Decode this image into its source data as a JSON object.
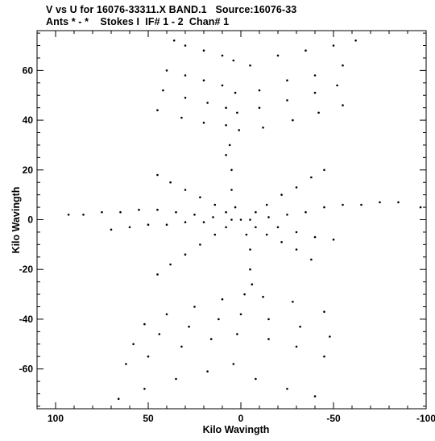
{
  "header": {
    "title_line1": "V vs U for 16076-33311.X BAND.1   Source:16076-33",
    "title_line2": "Ants * - *    Stokes I  IF# 1 - 2  Chan# 1"
  },
  "chart_data": {
    "type": "scatter",
    "title": "V vs U for 16076-33311.X BAND.1   Source:16076-33",
    "subtitle": "Ants * - *    Stokes I  IF# 1 - 2  Chan# 1",
    "xlabel": "Kilo Wavingth",
    "ylabel": "Kilo Wavingth",
    "xlim": [
      110,
      -100
    ],
    "ylim": [
      -76,
      76
    ],
    "x_reversed": true,
    "xticks": [
      100,
      50,
      0,
      -50,
      -100
    ],
    "yticks": [
      -60,
      -40,
      -20,
      0,
      20,
      40,
      60
    ],
    "grid": false,
    "marker": "black dots",
    "series": [
      {
        "values": [
          [
            36,
            72
          ],
          [
            30,
            70
          ],
          [
            20,
            68
          ],
          [
            10,
            66
          ],
          [
            4,
            64
          ],
          [
            -5,
            62
          ],
          [
            -20,
            66
          ],
          [
            -35,
            68
          ],
          [
            -50,
            70
          ],
          [
            -62,
            72
          ],
          [
            40,
            60
          ],
          [
            30,
            58
          ],
          [
            20,
            56
          ],
          [
            10,
            54
          ],
          [
            3,
            51
          ],
          [
            -10,
            52
          ],
          [
            -25,
            56
          ],
          [
            -40,
            58
          ],
          [
            -55,
            62
          ],
          [
            42,
            52
          ],
          [
            30,
            49
          ],
          [
            18,
            47
          ],
          [
            8,
            45
          ],
          [
            2,
            43
          ],
          [
            -10,
            45
          ],
          [
            -25,
            48
          ],
          [
            -40,
            51
          ],
          [
            -52,
            54
          ],
          [
            45,
            44
          ],
          [
            32,
            41
          ],
          [
            20,
            39
          ],
          [
            8,
            38
          ],
          [
            1,
            36
          ],
          [
            -12,
            37
          ],
          [
            -28,
            40
          ],
          [
            -42,
            43
          ],
          [
            -55,
            46
          ],
          [
            -2,
            -30
          ],
          [
            10,
            -32
          ],
          [
            25,
            -35
          ],
          [
            40,
            -38
          ],
          [
            52,
            -42
          ],
          [
            -12,
            -31
          ],
          [
            -28,
            -33
          ],
          [
            -45,
            -37
          ],
          [
            0,
            -38
          ],
          [
            12,
            -40
          ],
          [
            28,
            -43
          ],
          [
            44,
            -46
          ],
          [
            58,
            -50
          ],
          [
            -15,
            -40
          ],
          [
            -32,
            -43
          ],
          [
            -48,
            -47
          ],
          [
            2,
            -46
          ],
          [
            16,
            -48
          ],
          [
            32,
            -51
          ],
          [
            50,
            -55
          ],
          [
            62,
            -58
          ],
          [
            -15,
            -48
          ],
          [
            -30,
            -51
          ],
          [
            -45,
            -55
          ],
          [
            4,
            -58
          ],
          [
            18,
            -61
          ],
          [
            35,
            -64
          ],
          [
            52,
            -68
          ],
          [
            66,
            -72
          ],
          [
            -8,
            -64
          ],
          [
            -25,
            -68
          ],
          [
            -40,
            -71
          ],
          [
            93,
            2
          ],
          [
            85,
            2
          ],
          [
            75,
            3
          ],
          [
            65,
            3
          ],
          [
            55,
            4
          ],
          [
            45,
            4
          ],
          [
            35,
            3
          ],
          [
            25,
            2
          ],
          [
            15,
            1
          ],
          [
            5,
            0
          ],
          [
            -5,
            0
          ],
          [
            -15,
            1
          ],
          [
            -25,
            2
          ],
          [
            -35,
            3
          ],
          [
            -45,
            5
          ],
          [
            -55,
            6
          ],
          [
            -65,
            6
          ],
          [
            -75,
            7
          ],
          [
            -85,
            7
          ],
          [
            -97,
            5
          ],
          [
            70,
            -4
          ],
          [
            60,
            -3
          ],
          [
            50,
            -2
          ],
          [
            40,
            -2
          ],
          [
            30,
            -1
          ],
          [
            20,
            -1
          ],
          [
            -20,
            -3
          ],
          [
            -30,
            -5
          ],
          [
            -40,
            -7
          ],
          [
            -50,
            -8
          ],
          [
            45,
            18
          ],
          [
            38,
            15
          ],
          [
            30,
            12
          ],
          [
            22,
            9
          ],
          [
            14,
            6
          ],
          [
            8,
            3
          ],
          [
            -8,
            -3
          ],
          [
            -14,
            -6
          ],
          [
            -22,
            -9
          ],
          [
            -30,
            -12
          ],
          [
            -38,
            -16
          ],
          [
            -45,
            20
          ],
          [
            -38,
            17
          ],
          [
            -30,
            13
          ],
          [
            -22,
            10
          ],
          [
            -14,
            6
          ],
          [
            -8,
            3
          ],
          [
            8,
            -3
          ],
          [
            14,
            -6
          ],
          [
            22,
            -10
          ],
          [
            30,
            -14
          ],
          [
            38,
            -18
          ],
          [
            45,
            -22
          ],
          [
            5,
            20
          ],
          [
            5,
            12
          ],
          [
            3,
            5
          ],
          [
            0,
            0
          ],
          [
            -3,
            -6
          ],
          [
            -5,
            -12
          ],
          [
            -5,
            -20
          ],
          [
            -6,
            -26
          ],
          [
            8,
            26
          ],
          [
            6,
            30
          ]
        ]
      }
    ]
  }
}
